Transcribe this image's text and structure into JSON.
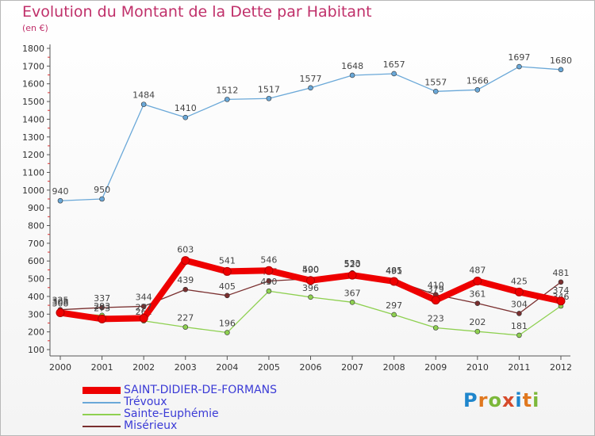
{
  "header": {
    "title": "Evolution du Montant de la Dette par Habitant",
    "unit": "(en €)"
  },
  "logo": {
    "text": "Proxiti"
  },
  "colors": {
    "title": "#c0306a",
    "legend_text": "#3b3bd6",
    "axis": "#444444",
    "grid": "#d0d0d0"
  },
  "chart_data": {
    "type": "line",
    "title": "Evolution du Montant de la Dette par Habitant",
    "ylabel": "(en €)",
    "xlabel": "",
    "ylim": [
      100,
      1800
    ],
    "yticks": [
      100,
      200,
      300,
      400,
      500,
      600,
      700,
      800,
      900,
      1000,
      1100,
      1200,
      1300,
      1400,
      1500,
      1600,
      1700,
      1800
    ],
    "grid": false,
    "legend_position": "bottom-left",
    "x": [
      "2000",
      "2001",
      "2002",
      "2003",
      "2004",
      "2005",
      "2006",
      "2007",
      "2008",
      "2009",
      "2010",
      "2011",
      "2012"
    ],
    "series": [
      {
        "name": "Trévoux",
        "color": "#6aa8d8",
        "values": [
          940,
          950,
          1484,
          1410,
          1512,
          1517,
          1577,
          1648,
          1657,
          1557,
          1566,
          1697,
          1680
        ]
      },
      {
        "name": "Misérieux",
        "color": "#7a2f2f",
        "values": [
          325,
          337,
          344,
          439,
          405,
          487,
          500,
          533,
          491,
          410,
          361,
          304,
          481
        ]
      },
      {
        "name": "Sainte-Euphémie",
        "color": "#8ed050",
        "values": [
          308,
          293,
          262,
          227,
          196,
          430,
          396,
          367,
          297,
          223,
          202,
          181,
          346
        ]
      },
      {
        "name": "SAINT-DIDIER-DE-FORMANS",
        "color": "#ee0000",
        "values": [
          308,
          273,
          277,
          603,
          541,
          546,
          490,
          520,
          485,
          379,
          487,
          425,
          374
        ]
      }
    ]
  },
  "legend": [
    {
      "label": "SAINT-DIDIER-DE-FORMANS",
      "color": "#ee0000"
    },
    {
      "label": "Trévoux",
      "color": "#6aa8d8"
    },
    {
      "label": "Sainte-Euphémie",
      "color": "#8ed050"
    },
    {
      "label": "Misérieux",
      "color": "#7a2f2f"
    }
  ]
}
